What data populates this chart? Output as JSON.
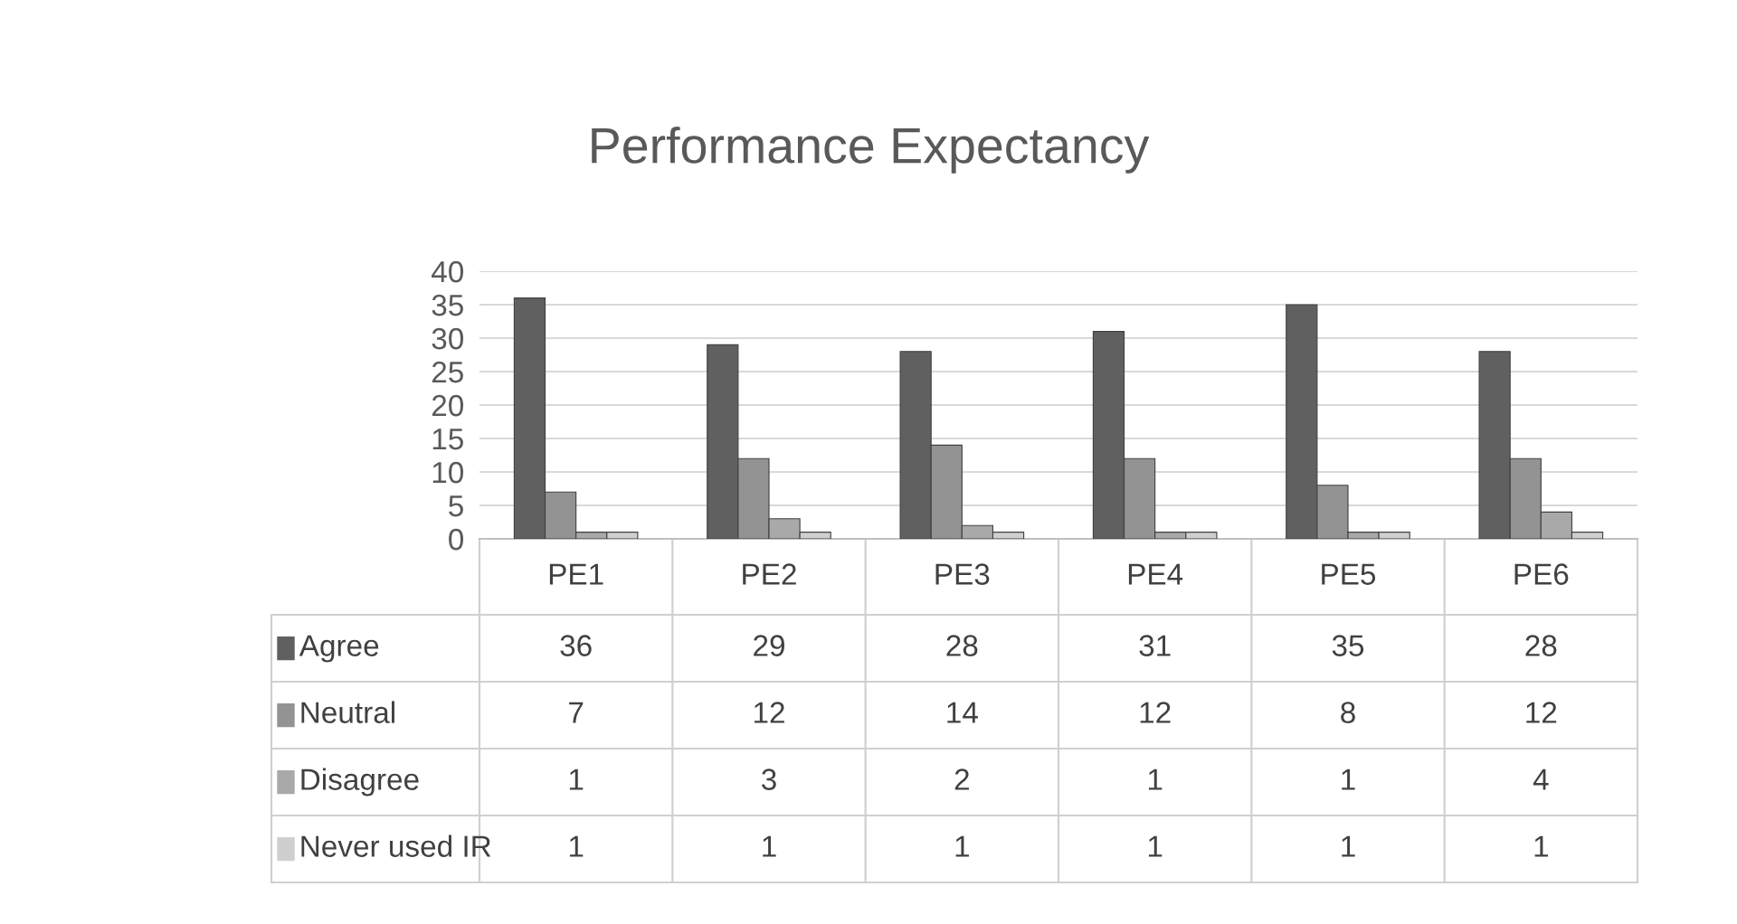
{
  "chart_data": {
    "type": "bar",
    "title": "Performance Expectancy",
    "categories": [
      "PE1",
      "PE2",
      "PE3",
      "PE4",
      "PE5",
      "PE6"
    ],
    "series": [
      {
        "name": "Agree",
        "color": "#606060",
        "values": [
          36,
          29,
          28,
          31,
          35,
          28
        ]
      },
      {
        "name": "Neutral",
        "color": "#939393",
        "values": [
          7,
          12,
          14,
          12,
          8,
          12
        ]
      },
      {
        "name": "Disagree",
        "color": "#a9a9a9",
        "values": [
          1,
          3,
          2,
          1,
          1,
          4
        ]
      },
      {
        "name": "Never used IR",
        "color": "#cfcfcf",
        "values": [
          1,
          1,
          1,
          1,
          1,
          1
        ]
      }
    ],
    "ylim": [
      0,
      40
    ],
    "yticks": [
      0,
      5,
      10,
      15,
      20,
      25,
      30,
      35,
      40
    ],
    "grid": "y",
    "data_labels": true,
    "legend": "bottom"
  }
}
